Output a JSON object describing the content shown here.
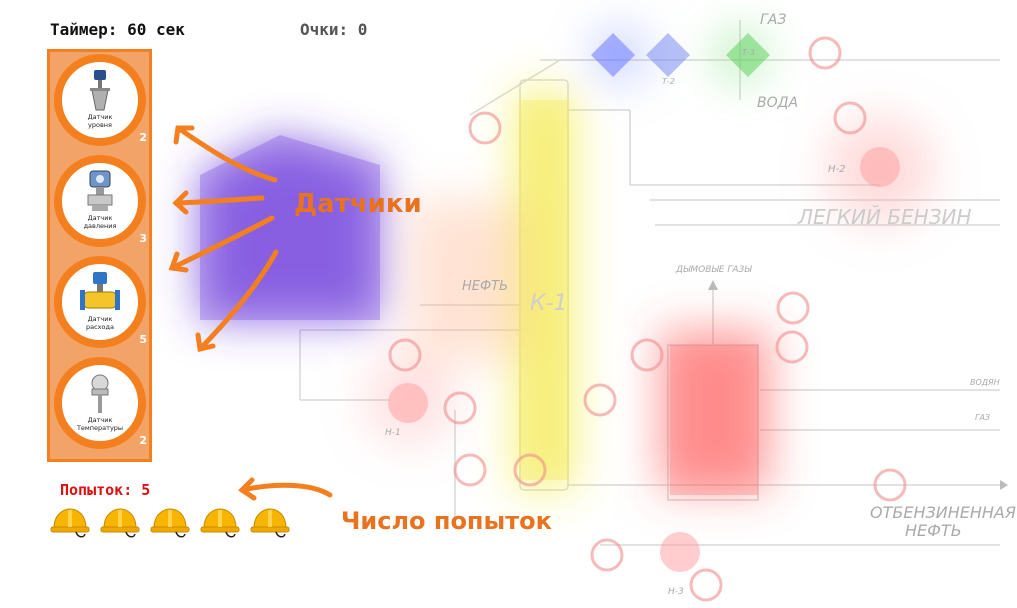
{
  "hud": {
    "timer": "Таймер: 60 сек",
    "score": "Очки: 0",
    "attempts": "Попыток: 5",
    "lives": 5
  },
  "panel": {
    "items": [
      {
        "label": "Датчик\nуровня",
        "count": "2",
        "icon": "level-sensor-icon"
      },
      {
        "label": "Датчик\nдавления",
        "count": "3",
        "icon": "pressure-sensor-icon"
      },
      {
        "label": "Датчик\nрасхода",
        "count": "5",
        "icon": "flow-sensor-icon"
      },
      {
        "label": "Датчик\nТемпературы",
        "count": "2",
        "icon": "temperature-sensor-icon"
      }
    ]
  },
  "callouts": {
    "sensors": "Датчики",
    "attempts": "Число попыток"
  },
  "schematic": {
    "labels": [
      "ГАЗ",
      "ВОДА",
      "Н-2",
      "ЛЕГКИЙ БЕНЗИН",
      "ДЫМОВЫЕ ГАЗЫ",
      "НЕФТЬ",
      "ВОДЯН",
      "ГАЗ",
      "Н-1",
      "ОТБЕНЗИНЕННАЯ",
      "НЕФТЬ",
      "Н-3",
      "Т-2",
      "Т-3",
      "К-1"
    ]
  },
  "colors": {
    "accent": "#f47f1e",
    "panel_bg": "#f2a468",
    "attempts_text": "#e01010",
    "callout": "#e8721e",
    "helmet": "#f7b500"
  }
}
